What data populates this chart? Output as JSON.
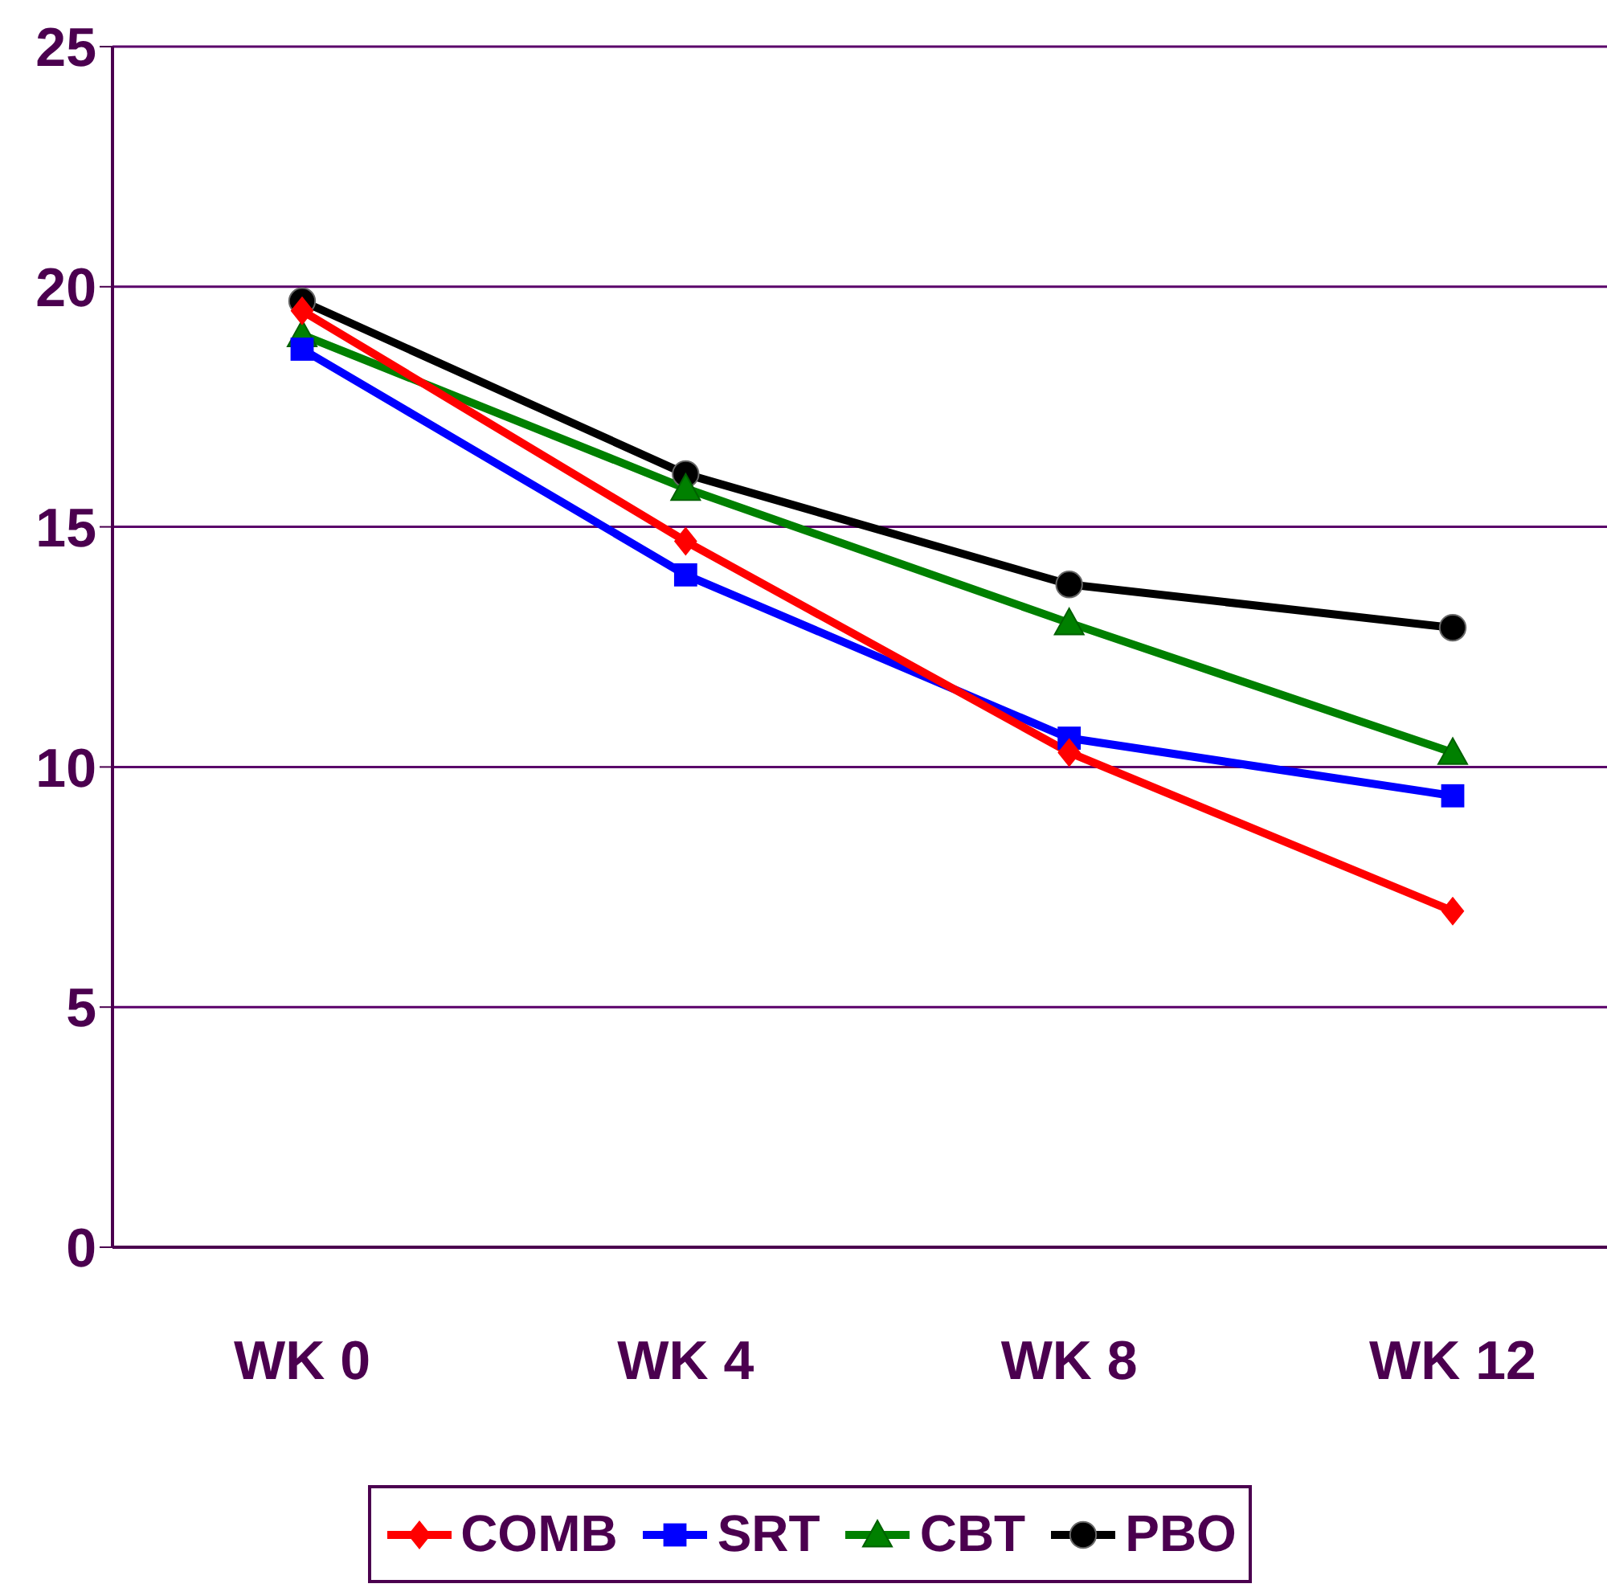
{
  "chart_data": {
    "type": "line",
    "categories": [
      "WK 0",
      "WK 4",
      "WK 8",
      "WK 12"
    ],
    "series": [
      {
        "name": "COMB",
        "color": "#ff0000",
        "marker": "diamond",
        "values": [
          19.5,
          14.7,
          10.3,
          7.0
        ]
      },
      {
        "name": "SRT",
        "color": "#0000ff",
        "marker": "square",
        "values": [
          18.7,
          14.0,
          10.6,
          9.4
        ]
      },
      {
        "name": "CBT",
        "color": "#008000",
        "marker": "triangle",
        "values": [
          19.0,
          15.8,
          13.0,
          10.3
        ]
      },
      {
        "name": "PBO",
        "color": "#000000",
        "marker": "circle",
        "values": [
          19.7,
          16.1,
          13.8,
          12.9
        ]
      }
    ],
    "ylim": [
      0,
      25
    ],
    "yticks": [
      0,
      5,
      10,
      15,
      20,
      25
    ],
    "grid": "y",
    "legend": "bottom"
  }
}
